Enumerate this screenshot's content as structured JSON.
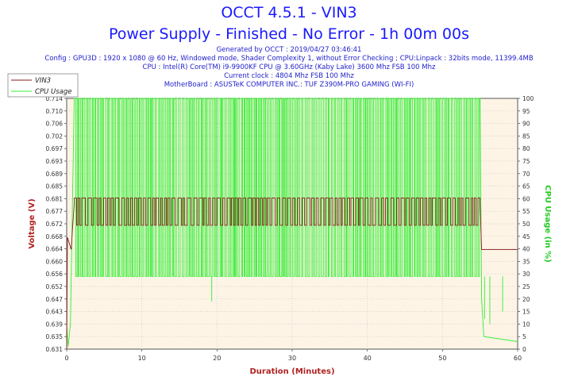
{
  "header": {
    "title": "OCCT 4.5.1 - VIN3",
    "subtitle": "Power Supply - Finished - No Error - 1h 00m 00s",
    "info_lines": [
      "Generated by OCCT : 2019/04/27 03:46:41",
      "Config : GPU3D : 1920 x 1080 @ 60 Hz, Windowed mode, Shader Complexity 1, without Error Checking ; CPU:Linpack : 32bits mode, 11399.4MB",
      "CPU : Intel(R) Core(TM) i9-9900KF CPU @ 3.60GHz (Kaby Lake) 3600 Mhz FSB 100 Mhz",
      "Current clock : 4804 Mhz FSB 100 Mhz",
      "MotherBoard : ASUSTeK COMPUTER INC.: TUF Z390M-PRO GAMING (WI-FI)"
    ]
  },
  "colors": {
    "title": "#1a1aff",
    "info": "#2222cc",
    "voltage": "#8b1a1a",
    "cpu": "#33ee33",
    "plot_bg": "#fdf4e6",
    "grid": "#c8c8c8",
    "axis_label": "#b22222"
  },
  "chart_data": {
    "type": "line",
    "xlabel": "Duration (Minutes)",
    "ylabel": "Voltage (V)",
    "y2label": "CPU Usage (in %)",
    "xlim": [
      0,
      60
    ],
    "ylim": [
      0.631,
      0.714
    ],
    "y2lim": [
      0,
      100
    ],
    "x_ticks": [
      "0",
      "10",
      "20",
      "30",
      "40",
      "50",
      "60"
    ],
    "y_ticks": [
      "0.631",
      "0.635",
      "0.639",
      "0.643",
      "0.647",
      "0.652",
      "0.656",
      "0.660",
      "0.664",
      "0.668",
      "0.672",
      "0.677",
      "0.681",
      "0.685",
      "0.689",
      "0.693",
      "0.697",
      "0.702",
      "0.706",
      "0.710",
      "0.714"
    ],
    "y2_ticks": [
      "0",
      "5",
      "10",
      "15",
      "20",
      "25",
      "30",
      "35",
      "40",
      "45",
      "50",
      "55",
      "60",
      "65",
      "70",
      "75",
      "80",
      "85",
      "90",
      "95",
      "100"
    ],
    "legend_position": "top-left",
    "grid": true,
    "series": [
      {
        "name": "VIN3",
        "axis": "left",
        "points": [
          [
            0,
            0.631
          ],
          [
            0.1,
            0.668
          ],
          [
            0.6,
            0.664
          ],
          [
            0.8,
            0.672
          ],
          [
            1.0,
            0.679
          ],
          [
            55.0,
            0.679
          ],
          [
            55.2,
            0.664
          ],
          [
            60,
            0.664
          ]
        ],
        "oscillation": {
          "from": 1.0,
          "to": 55.0,
          "high": 0.681,
          "low": 0.672,
          "period_min": 0.75
        }
      },
      {
        "name": "CPU Usage",
        "axis": "right",
        "points": [
          [
            0,
            9
          ],
          [
            0.2,
            1
          ],
          [
            0.5,
            10
          ],
          [
            1.0,
            100
          ],
          [
            55.0,
            100
          ],
          [
            55.2,
            20
          ],
          [
            55.5,
            5
          ],
          [
            60,
            3
          ]
        ],
        "oscillation": {
          "from": 1.0,
          "to": 55.0,
          "high": 100,
          "low": 29,
          "period_min": 0.45
        },
        "dips": [
          [
            19.3,
            19
          ],
          [
            55.6,
            12
          ],
          [
            58.0,
            15
          ],
          [
            56.3,
            10
          ]
        ]
      }
    ]
  }
}
